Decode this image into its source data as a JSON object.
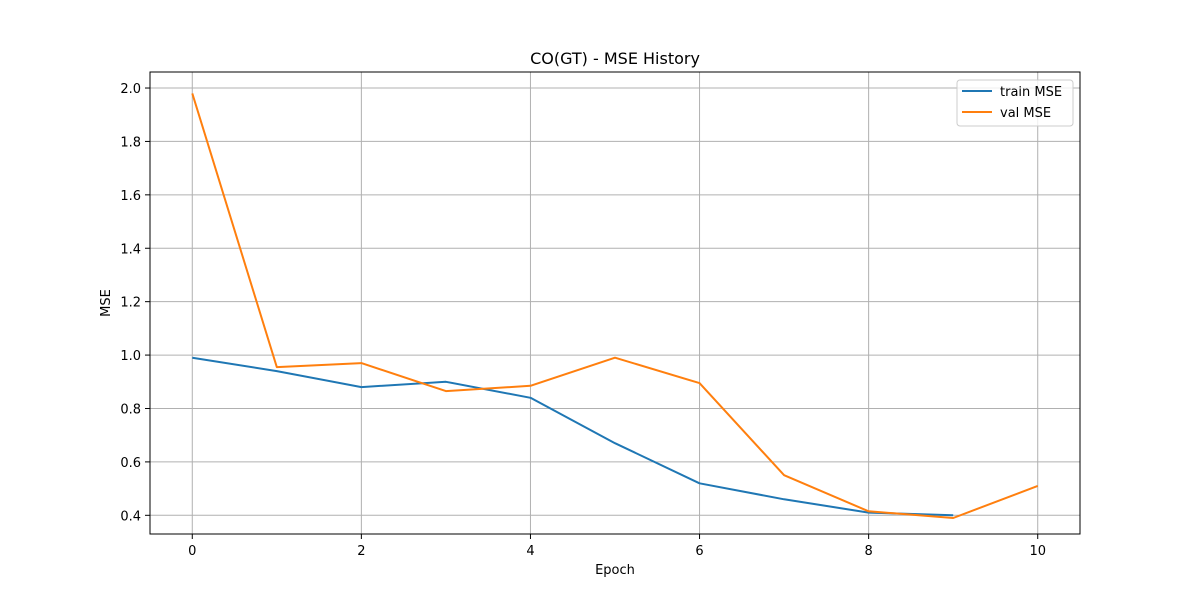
{
  "chart_data": {
    "type": "line",
    "title": "CO(GT) - MSE History",
    "xlabel": "Epoch",
    "ylabel": "MSE",
    "x": [
      0,
      1,
      2,
      3,
      4,
      5,
      6,
      7,
      8,
      9,
      10
    ],
    "xlim": [
      -0.5,
      10.5
    ],
    "ylim": [
      0.33,
      2.06
    ],
    "xticks": [
      0,
      2,
      4,
      6,
      8,
      10
    ],
    "yticks": [
      0.4,
      0.6,
      0.8,
      1.0,
      1.2,
      1.4,
      1.6,
      1.8,
      2.0
    ],
    "ytick_labels": [
      "0.4",
      "0.6",
      "0.8",
      "1.0",
      "1.2",
      "1.4",
      "1.6",
      "1.8",
      "2.0"
    ],
    "grid": true,
    "legend_position": "top-right",
    "series": [
      {
        "name": "train MSE",
        "color": "#1f77b4",
        "values": [
          0.99,
          0.94,
          0.88,
          0.9,
          0.84,
          0.67,
          0.52,
          0.46,
          0.41,
          0.4,
          null
        ]
      },
      {
        "name": "val MSE",
        "color": "#ff7f0e",
        "values": [
          1.98,
          0.955,
          0.97,
          0.865,
          0.885,
          0.99,
          0.895,
          0.55,
          0.415,
          0.39,
          0.51
        ]
      }
    ]
  }
}
